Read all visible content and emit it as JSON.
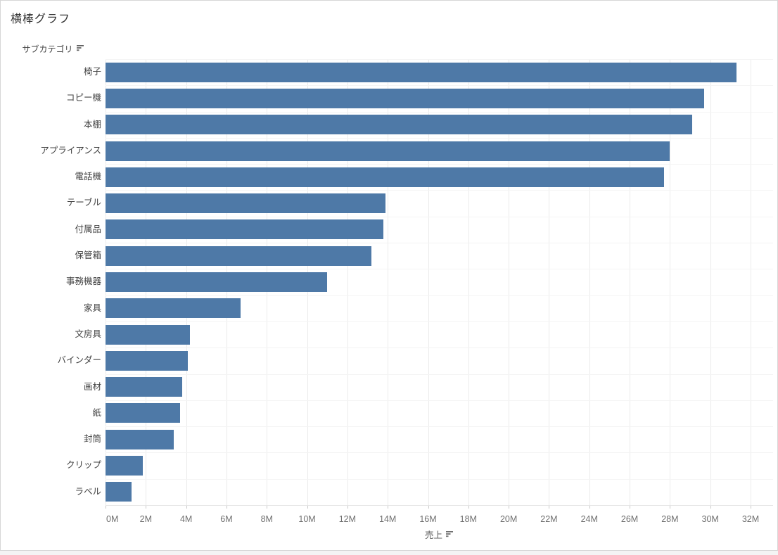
{
  "window": {
    "border_color": "#d6d6d6",
    "background": "#ffffff"
  },
  "chart_data": {
    "type": "bar",
    "orientation": "horizontal",
    "title": "横棒グラフ",
    "category_axis_title": "サブカテゴリ",
    "xlabel": "売上",
    "sort_indicator": "sort-descending-icon",
    "categories": [
      "椅子",
      "コピー機",
      "本棚",
      "アプライアンス",
      "電話機",
      "テーブル",
      "付属品",
      "保管箱",
      "事務機器",
      "家具",
      "文房具",
      "バインダー",
      "画材",
      "紙",
      "封筒",
      "クリップ",
      "ラベル"
    ],
    "values_millions": [
      31.3,
      29.7,
      29.1,
      28.0,
      27.7,
      13.9,
      13.8,
      13.2,
      11.0,
      6.7,
      4.2,
      4.1,
      3.8,
      3.7,
      3.4,
      1.85,
      1.3
    ],
    "xlim": [
      0,
      32
    ],
    "xtick_labels": [
      "0M",
      "2M",
      "4M",
      "6M",
      "8M",
      "10M",
      "12M",
      "14M",
      "16M",
      "18M",
      "20M",
      "22M",
      "24M",
      "26M",
      "28M",
      "30M",
      "32M"
    ],
    "bar_color": "#4e79a7",
    "grid": true,
    "legend_position": "none",
    "sort_order": "descending by 売上"
  }
}
